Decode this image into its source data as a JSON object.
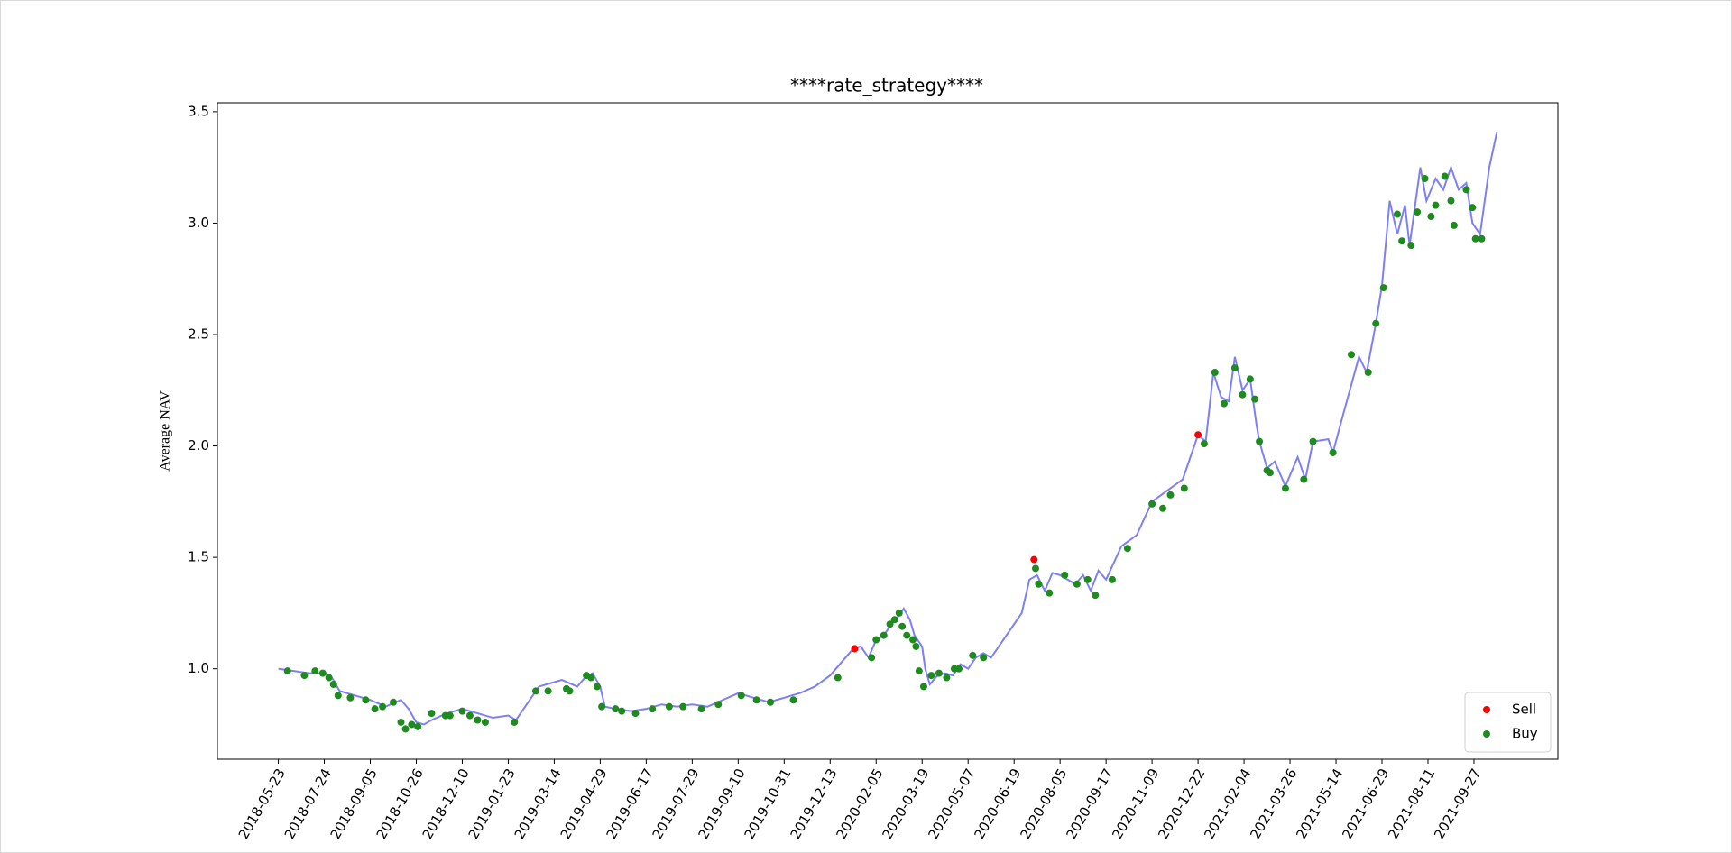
{
  "chart_data": {
    "type": "line",
    "title": "****rate_strategy****",
    "y_label": "Average NAV",
    "xlim": [
      -39.75,
      834.75
    ],
    "ylim": [
      0.594,
      3.54
    ],
    "xticks": [
      {
        "value": 0,
        "label": "2018-05-23"
      },
      {
        "value": 30,
        "label": "2018-07-24"
      },
      {
        "value": 60,
        "label": "2018-09-05"
      },
      {
        "value": 90,
        "label": "2018-10-26"
      },
      {
        "value": 120,
        "label": "2018-12-10"
      },
      {
        "value": 150,
        "label": "2019-01-23"
      },
      {
        "value": 180,
        "label": "2019-03-14"
      },
      {
        "value": 210,
        "label": "2019-04-29"
      },
      {
        "value": 240,
        "label": "2019-06-17"
      },
      {
        "value": 270,
        "label": "2019-07-29"
      },
      {
        "value": 300,
        "label": "2019-09-10"
      },
      {
        "value": 330,
        "label": "2019-10-31"
      },
      {
        "value": 360,
        "label": "2019-12-13"
      },
      {
        "value": 390,
        "label": "2020-02-05"
      },
      {
        "value": 420,
        "label": "2020-03-19"
      },
      {
        "value": 450,
        "label": "2020-05-07"
      },
      {
        "value": 480,
        "label": "2020-06-19"
      },
      {
        "value": 510,
        "label": "2020-08-05"
      },
      {
        "value": 540,
        "label": "2020-09-17"
      },
      {
        "value": 570,
        "label": "2020-11-09"
      },
      {
        "value": 600,
        "label": "2020-12-22"
      },
      {
        "value": 630,
        "label": "2021-02-04"
      },
      {
        "value": 660,
        "label": "2021-03-26"
      },
      {
        "value": 690,
        "label": "2021-05-14"
      },
      {
        "value": 720,
        "label": "2021-06-29"
      },
      {
        "value": 750,
        "label": "2021-08-11"
      },
      {
        "value": 780,
        "label": "2021-09-27"
      }
    ],
    "yticks": [
      {
        "value": 1,
        "label": "1.0"
      },
      {
        "value": 1.5,
        "label": "1.5"
      },
      {
        "value": 2,
        "label": "2.0"
      },
      {
        "value": 2.5,
        "label": "2.5"
      },
      {
        "value": 3,
        "label": "3.0"
      },
      {
        "value": 3.5,
        "label": "3.5"
      }
    ],
    "legend": "lower right",
    "series": [
      {
        "type": "line",
        "color": "#7f7ff5",
        "x": [
          0,
          10,
          20,
          30,
          35,
          40,
          50,
          60,
          70,
          80,
          85,
          90,
          95,
          100,
          110,
          120,
          130,
          140,
          150,
          155,
          165,
          170,
          180,
          185,
          195,
          200,
          205,
          210,
          213,
          220,
          230,
          240,
          250,
          260,
          270,
          280,
          290,
          300,
          310,
          320,
          330,
          340,
          350,
          360,
          370,
          375,
          380,
          385,
          390,
          395,
          400,
          405,
          408,
          412,
          415,
          420,
          422,
          425,
          430,
          435,
          440,
          445,
          450,
          455,
          460,
          465,
          470,
          480,
          485,
          490,
          495,
          500,
          505,
          510,
          515,
          520,
          525,
          530,
          535,
          540,
          550,
          560,
          570,
          580,
          590,
          600,
          605,
          610,
          615,
          620,
          624,
          629,
          634,
          638,
          640,
          645,
          650,
          657,
          665,
          670,
          675,
          685,
          688,
          695,
          705,
          710,
          716,
          720,
          725,
          730,
          735,
          738,
          745,
          749,
          755,
          760,
          765,
          770,
          775,
          779,
          784,
          790,
          795
        ],
        "values": [
          1.0,
          0.99,
          0.98,
          0.98,
          0.96,
          0.9,
          0.88,
          0.86,
          0.83,
          0.86,
          0.82,
          0.76,
          0.75,
          0.77,
          0.8,
          0.82,
          0.8,
          0.78,
          0.79,
          0.77,
          0.87,
          0.92,
          0.94,
          0.95,
          0.92,
          0.96,
          0.98,
          0.92,
          0.83,
          0.82,
          0.81,
          0.82,
          0.84,
          0.83,
          0.84,
          0.83,
          0.86,
          0.89,
          0.87,
          0.85,
          0.87,
          0.89,
          0.92,
          0.97,
          1.05,
          1.09,
          1.1,
          1.05,
          1.13,
          1.15,
          1.2,
          1.24,
          1.27,
          1.22,
          1.15,
          1.1,
          1.0,
          0.93,
          0.97,
          0.98,
          0.97,
          1.02,
          1.0,
          1.05,
          1.07,
          1.05,
          1.1,
          1.2,
          1.25,
          1.4,
          1.42,
          1.35,
          1.43,
          1.42,
          1.4,
          1.38,
          1.42,
          1.35,
          1.44,
          1.4,
          1.55,
          1.6,
          1.75,
          1.8,
          1.85,
          2.05,
          2.02,
          2.33,
          2.22,
          2.2,
          2.4,
          2.25,
          2.3,
          2.1,
          2.02,
          1.9,
          1.93,
          1.82,
          1.95,
          1.85,
          2.02,
          2.03,
          1.97,
          2.15,
          2.4,
          2.33,
          2.55,
          2.72,
          3.1,
          2.95,
          3.08,
          2.9,
          3.25,
          3.1,
          3.2,
          3.15,
          3.25,
          3.15,
          3.18,
          3.0,
          2.95,
          3.25,
          3.41
        ]
      },
      {
        "type": "scatter",
        "name": "Sell",
        "color": "#ff0000",
        "x": [
          376,
          493,
          600
        ],
        "values": [
          1.09,
          1.49,
          2.05
        ]
      },
      {
        "type": "scatter",
        "name": "Buy",
        "color": "#1f8a1f",
        "x": [
          6,
          17,
          24,
          29,
          33,
          36,
          39,
          47,
          57,
          63,
          68,
          75,
          80,
          83,
          87,
          91,
          100,
          109,
          112,
          120,
          125,
          130,
          135,
          154,
          168,
          176,
          188,
          190,
          201,
          204,
          208,
          211,
          220,
          224,
          233,
          244,
          255,
          264,
          276,
          287,
          302,
          312,
          321,
          336,
          365,
          387,
          390,
          395,
          399,
          402,
          405,
          407,
          410,
          414,
          416,
          418,
          421,
          426,
          431,
          436,
          441,
          444,
          453,
          460,
          494,
          496,
          503,
          513,
          521,
          528,
          533,
          544,
          554,
          570,
          577,
          582,
          591,
          604,
          611,
          617,
          624,
          629,
          634,
          637,
          640,
          645,
          647,
          657,
          669,
          675,
          688,
          700,
          711,
          716,
          721,
          730,
          733,
          739,
          743,
          748,
          752,
          755,
          761,
          765,
          767,
          775,
          779,
          781,
          785
        ],
        "values": [
          0.99,
          0.97,
          0.99,
          0.98,
          0.96,
          0.93,
          0.88,
          0.87,
          0.86,
          0.82,
          0.83,
          0.85,
          0.76,
          0.73,
          0.75,
          0.74,
          0.8,
          0.79,
          0.79,
          0.81,
          0.79,
          0.77,
          0.76,
          0.76,
          0.9,
          0.9,
          0.91,
          0.9,
          0.97,
          0.96,
          0.92,
          0.83,
          0.82,
          0.81,
          0.8,
          0.82,
          0.83,
          0.83,
          0.82,
          0.84,
          0.88,
          0.86,
          0.85,
          0.86,
          0.96,
          1.05,
          1.13,
          1.15,
          1.2,
          1.22,
          1.25,
          1.19,
          1.15,
          1.13,
          1.1,
          0.99,
          0.92,
          0.97,
          0.98,
          0.96,
          1.0,
          1.0,
          1.06,
          1.05,
          1.45,
          1.38,
          1.34,
          1.42,
          1.38,
          1.4,
          1.33,
          1.4,
          1.54,
          1.74,
          1.72,
          1.78,
          1.81,
          2.01,
          2.33,
          2.19,
          2.35,
          2.23,
          2.3,
          2.21,
          2.02,
          1.89,
          1.88,
          1.81,
          1.85,
          2.02,
          1.97,
          2.41,
          2.33,
          2.55,
          2.71,
          3.04,
          2.92,
          2.9,
          3.05,
          3.2,
          3.03,
          3.08,
          3.21,
          3.1,
          2.99,
          3.15,
          3.07,
          2.93,
          2.93
        ]
      }
    ]
  }
}
